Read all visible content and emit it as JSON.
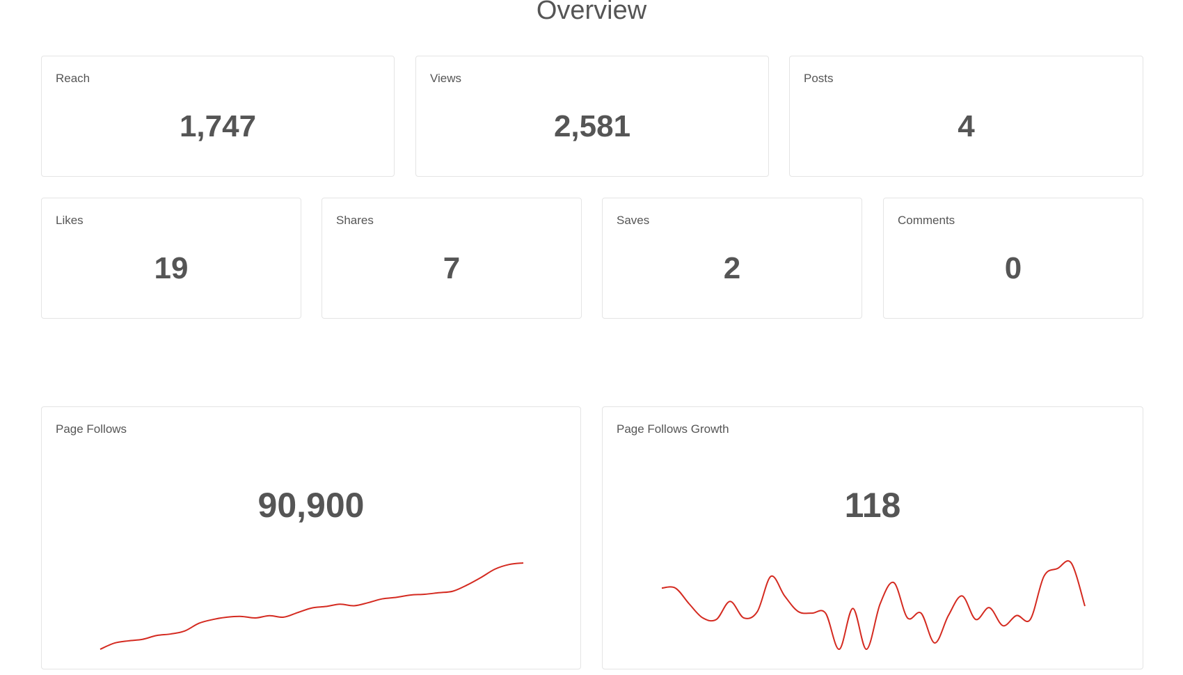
{
  "header": {
    "title": "Overview"
  },
  "cards": [
    {
      "label": "Reach",
      "value": "1,747"
    },
    {
      "label": "Views",
      "value": "2,581"
    },
    {
      "label": "Posts",
      "value": "4"
    },
    {
      "label": "Likes",
      "value": "19"
    },
    {
      "label": "Shares",
      "value": "7"
    },
    {
      "label": "Saves",
      "value": "2"
    },
    {
      "label": "Comments",
      "value": "0"
    }
  ],
  "chart_data": [
    {
      "type": "line",
      "title": "Page Follows",
      "value": "90,900",
      "color": "#d42a20",
      "values": [
        40,
        48,
        51,
        53,
        58,
        60,
        64,
        74,
        79,
        82,
        83,
        81,
        84,
        82,
        88,
        94,
        96,
        99,
        97,
        101,
        106,
        108,
        111,
        112,
        114,
        116,
        124,
        134,
        145,
        151,
        153
      ]
    },
    {
      "type": "line",
      "title": "Page Follows Growth",
      "value": "118",
      "color": "#d42a20",
      "values": [
        120,
        120,
        100,
        82,
        80,
        103,
        82,
        90,
        135,
        110,
        90,
        88,
        88,
        42,
        94,
        42,
        100,
        127,
        82,
        88,
        50,
        85,
        110,
        80,
        95,
        72,
        85,
        80,
        135,
        145,
        152,
        97
      ]
    }
  ]
}
